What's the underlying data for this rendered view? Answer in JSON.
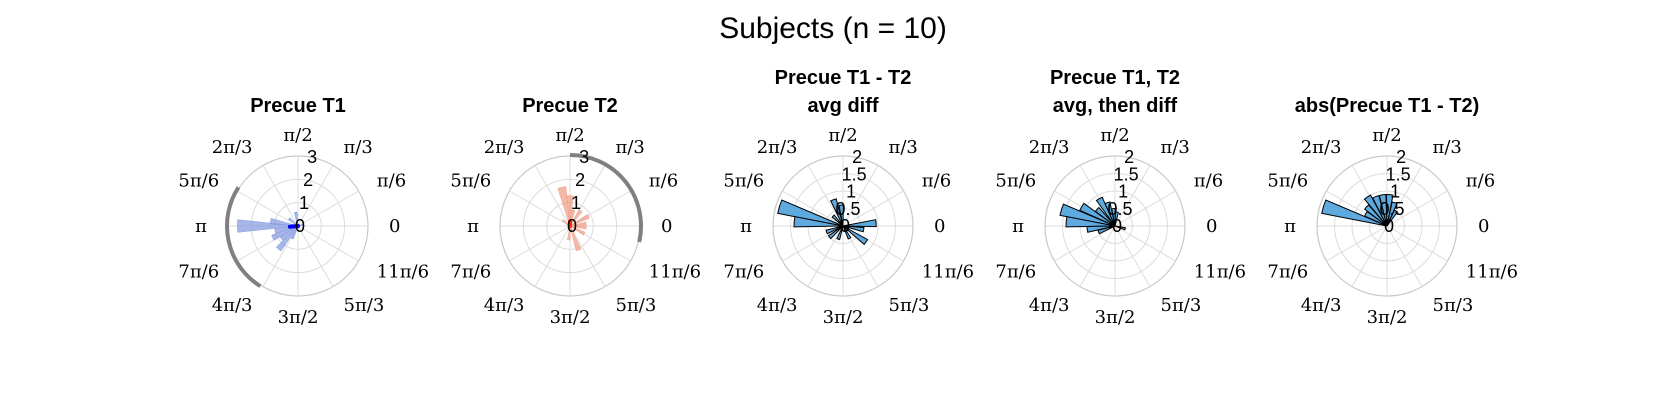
{
  "suptitle": "Subjects (n = 10)",
  "angle_labels": [
    "0",
    "π/6",
    "π/3",
    "π/2",
    "2π/3",
    "5π/6",
    "π",
    "7π/6",
    "4π/3",
    "3π/2",
    "5π/3",
    "11π/6"
  ],
  "colors": {
    "blue_fill": "#8a9de0",
    "blue_line": "#0000ff",
    "red_fill": "#f0a08a",
    "red_line": "#ff2a00",
    "steel_fill": "#5ea9dd",
    "bar_edge": "#000000",
    "arc": "#808080"
  },
  "chart_data": [
    {
      "type": "polar-histogram",
      "title": [
        "Precue T1"
      ],
      "rmax": 3,
      "rticks": [
        "0",
        "1",
        "2",
        "3"
      ],
      "fill": "blue",
      "edge": "none",
      "bin_width_deg": 12,
      "bars": [
        {
          "angle": 180,
          "r": 2.6
        },
        {
          "angle": 170,
          "r": 1.2
        },
        {
          "angle": 192,
          "r": 1.0
        },
        {
          "angle": 205,
          "r": 1.2
        },
        {
          "angle": 218,
          "r": 0.9
        },
        {
          "angle": 230,
          "r": 1.3
        },
        {
          "angle": 245,
          "r": 0.6
        },
        {
          "angle": 100,
          "r": 0.6
        },
        {
          "angle": 140,
          "r": 0.5
        },
        {
          "angle": 15,
          "r": 0.2
        }
      ],
      "mean_vector": {
        "angle": 185,
        "r": 0.35
      },
      "arc_deg": [
        147,
        238
      ]
    },
    {
      "type": "polar-histogram",
      "title": [
        "Precue T2"
      ],
      "rmax": 3,
      "rticks": [
        "0",
        "1",
        "2",
        "3"
      ],
      "fill": "red",
      "edge": "none",
      "bin_width_deg": 12,
      "bars": [
        {
          "angle": 102,
          "r": 1.7
        },
        {
          "angle": 90,
          "r": 1.3
        },
        {
          "angle": 78,
          "r": 0.7
        },
        {
          "angle": 55,
          "r": 0.8
        },
        {
          "angle": 28,
          "r": 0.9
        },
        {
          "angle": 8,
          "r": 0.7
        },
        {
          "angle": -5,
          "r": 0.7
        },
        {
          "angle": -28,
          "r": 0.7
        },
        {
          "angle": -70,
          "r": 1.1
        },
        {
          "angle": -95,
          "r": 0.6
        },
        {
          "angle": 140,
          "r": 0.4
        }
      ],
      "mean_vector": {
        "angle": 90,
        "r": 0.2
      },
      "arc_deg": [
        -13,
        90
      ]
    },
    {
      "type": "polar-histogram",
      "title": [
        "Precue T1 - T2",
        "avg diff"
      ],
      "rmax": 2,
      "rticks": [
        "0",
        "0.5",
        "1",
        "1.5",
        "2"
      ],
      "fill": "steel",
      "edge": "black",
      "bin_width_deg": 12,
      "bars": [
        {
          "angle": 163,
          "r": 1.9
        },
        {
          "angle": 175,
          "r": 1.4
        },
        {
          "angle": 110,
          "r": 0.8
        },
        {
          "angle": 95,
          "r": 0.6
        },
        {
          "angle": 135,
          "r": 0.4
        },
        {
          "angle": 5,
          "r": 0.95
        },
        {
          "angle": -10,
          "r": 0.6
        },
        {
          "angle": -35,
          "r": 0.8
        },
        {
          "angle": -62,
          "r": 0.4
        },
        {
          "angle": 200,
          "r": 0.5
        },
        {
          "angle": 220,
          "r": 0.5
        },
        {
          "angle": 250,
          "r": 0.4
        }
      ],
      "arc_deg": null
    },
    {
      "type": "polar-histogram",
      "title": [
        "Precue T1, T2",
        "avg, then diff"
      ],
      "rmax": 2,
      "rticks": [
        "0",
        "0.5",
        "1",
        "1.5",
        "2"
      ],
      "fill": "steel",
      "edge": "black",
      "bin_width_deg": 12,
      "bars": [
        {
          "angle": 163,
          "r": 1.6
        },
        {
          "angle": 175,
          "r": 1.4
        },
        {
          "angle": 150,
          "r": 1.1
        },
        {
          "angle": 137,
          "r": 0.7
        },
        {
          "angle": 120,
          "r": 0.9
        },
        {
          "angle": 108,
          "r": 0.7
        },
        {
          "angle": 95,
          "r": 0.5
        },
        {
          "angle": 82,
          "r": 0.4
        },
        {
          "angle": 187,
          "r": 0.8
        },
        {
          "angle": 200,
          "r": 0.5
        },
        {
          "angle": -15,
          "r": 0.3
        }
      ],
      "arc_deg": null
    },
    {
      "type": "polar-histogram",
      "title": [
        "abs(Precue T1 - T2)"
      ],
      "rmax": 2,
      "rticks": [
        "0",
        "0.5",
        "1",
        "1.5",
        "2"
      ],
      "fill": "steel",
      "edge": "black",
      "bin_width_deg": 12,
      "bars": [
        {
          "angle": 163,
          "r": 1.9
        },
        {
          "angle": 150,
          "r": 0.7
        },
        {
          "angle": 137,
          "r": 0.8
        },
        {
          "angle": 124,
          "r": 1.0
        },
        {
          "angle": 111,
          "r": 0.9
        },
        {
          "angle": 98,
          "r": 0.9
        },
        {
          "angle": 85,
          "r": 0.9
        },
        {
          "angle": 72,
          "r": 0.7
        },
        {
          "angle": 59,
          "r": 0.5
        }
      ],
      "arc_deg": null
    }
  ]
}
